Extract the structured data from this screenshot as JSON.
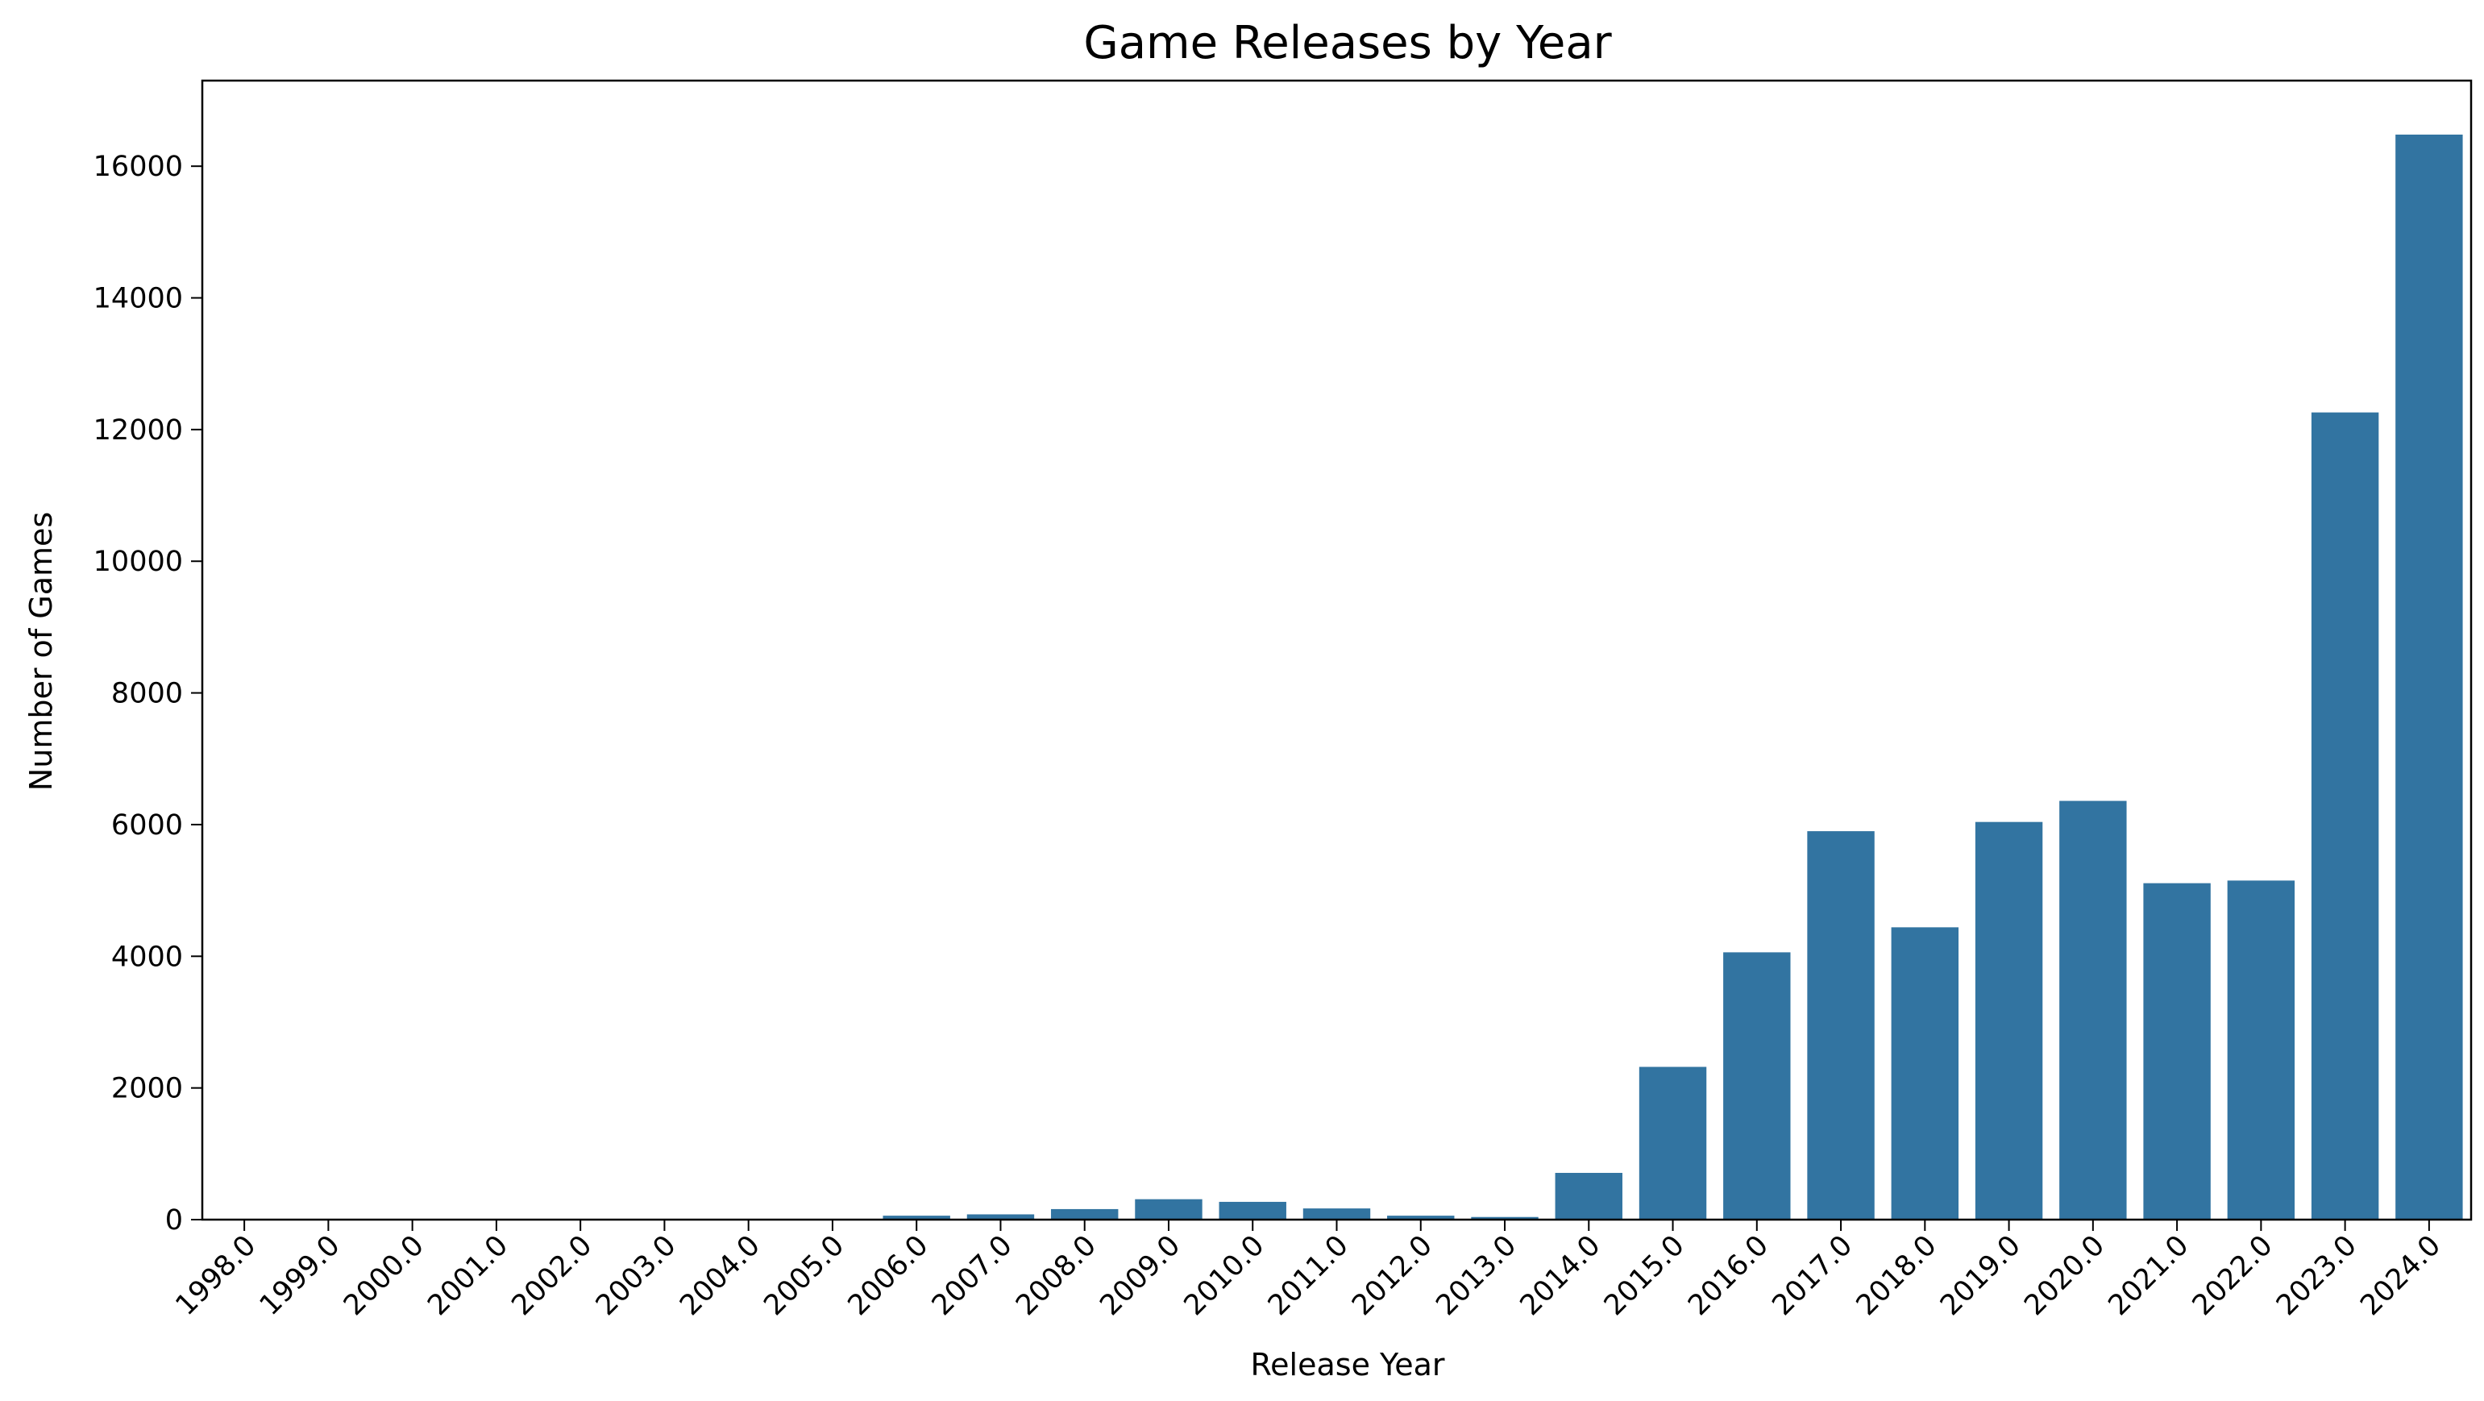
{
  "chart_data": {
    "type": "bar",
    "title": "Game Releases by Year",
    "xlabel": "Release Year",
    "ylabel": "Number of Games",
    "categories": [
      "1998.0",
      "1999.0",
      "2000.0",
      "2001.0",
      "2002.0",
      "2003.0",
      "2004.0",
      "2005.0",
      "2006.0",
      "2007.0",
      "2008.0",
      "2009.0",
      "2010.0",
      "2011.0",
      "2012.0",
      "2013.0",
      "2014.0",
      "2015.0",
      "2016.0",
      "2017.0",
      "2018.0",
      "2019.0",
      "2020.0",
      "2021.0",
      "2022.0",
      "2023.0",
      "2024.0"
    ],
    "values": [
      1,
      1,
      1,
      1,
      1,
      1,
      2,
      3,
      60,
      80,
      160,
      310,
      270,
      170,
      60,
      40,
      710,
      2320,
      4060,
      5900,
      4440,
      6040,
      6360,
      5110,
      5150,
      12260,
      16480
    ],
    "yticks": [
      0,
      2000,
      4000,
      6000,
      8000,
      10000,
      12000,
      14000,
      16000
    ],
    "ylim": [
      0,
      17300
    ],
    "grid": false,
    "legend": "none",
    "bar_color": "#3274a1"
  }
}
